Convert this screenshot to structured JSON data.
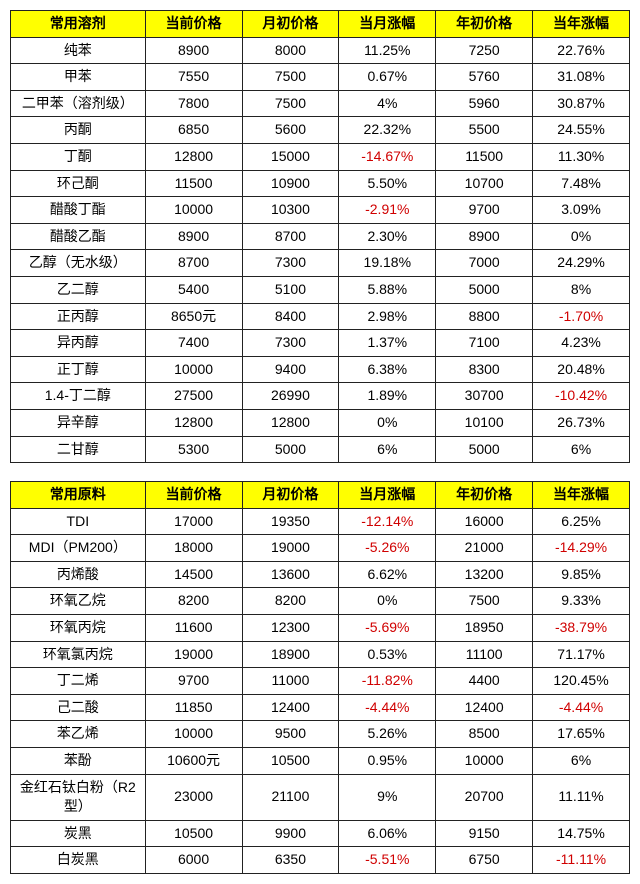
{
  "colors": {
    "header_bg": "#ffff00",
    "header_fg": "#000000",
    "border": "#222222",
    "cell_bg": "#ffffff",
    "cell_fg": "#000000",
    "negative_fg": "#d00000"
  },
  "font": {
    "family": "Microsoft YaHei",
    "size_pt": 14
  },
  "tables": [
    {
      "headers": [
        "常用溶剂",
        "当前价格",
        "月初价格",
        "当月涨幅",
        "年初价格",
        "当年涨幅"
      ],
      "rows": [
        {
          "name": "纯苯",
          "current": "8900",
          "month_start": "8000",
          "month_chg": "11.25%",
          "year_start": "7250",
          "year_chg": "22.76%"
        },
        {
          "name": "甲苯",
          "current": "7550",
          "month_start": "7500",
          "month_chg": "0.67%",
          "year_start": "5760",
          "year_chg": "31.08%"
        },
        {
          "name": "二甲苯（溶剂级）",
          "current": "7800",
          "month_start": "7500",
          "month_chg": "4%",
          "year_start": "5960",
          "year_chg": "30.87%"
        },
        {
          "name": "丙酮",
          "current": "6850",
          "month_start": "5600",
          "month_chg": "22.32%",
          "year_start": "5500",
          "year_chg": "24.55%"
        },
        {
          "name": "丁酮",
          "current": "12800",
          "month_start": "15000",
          "month_chg": "-14.67%",
          "year_start": "11500",
          "year_chg": "11.30%"
        },
        {
          "name": "环己酮",
          "current": "11500",
          "month_start": "10900",
          "month_chg": "5.50%",
          "year_start": "10700",
          "year_chg": "7.48%"
        },
        {
          "name": "醋酸丁酯",
          "current": "10000",
          "month_start": "10300",
          "month_chg": "-2.91%",
          "year_start": "9700",
          "year_chg": "3.09%"
        },
        {
          "name": "醋酸乙酯",
          "current": "8900",
          "month_start": "8700",
          "month_chg": "2.30%",
          "year_start": "8900",
          "year_chg": "0%"
        },
        {
          "name": "乙醇（无水级）",
          "current": "8700",
          "month_start": "7300",
          "month_chg": "19.18%",
          "year_start": "7000",
          "year_chg": "24.29%"
        },
        {
          "name": "乙二醇",
          "current": "5400",
          "month_start": "5100",
          "month_chg": "5.88%",
          "year_start": "5000",
          "year_chg": "8%"
        },
        {
          "name": "正丙醇",
          "current": "8650元",
          "month_start": "8400",
          "month_chg": "2.98%",
          "year_start": "8800",
          "year_chg": "-1.70%"
        },
        {
          "name": "异丙醇",
          "current": "7400",
          "month_start": "7300",
          "month_chg": "1.37%",
          "year_start": "7100",
          "year_chg": "4.23%"
        },
        {
          "name": "正丁醇",
          "current": "10000",
          "month_start": "9400",
          "month_chg": "6.38%",
          "year_start": "8300",
          "year_chg": "20.48%"
        },
        {
          "name": "1.4-丁二醇",
          "current": "27500",
          "month_start": "26990",
          "month_chg": "1.89%",
          "year_start": "30700",
          "year_chg": "-10.42%"
        },
        {
          "name": "异辛醇",
          "current": "12800",
          "month_start": "12800",
          "month_chg": "0%",
          "year_start": "10100",
          "year_chg": "26.73%"
        },
        {
          "name": "二甘醇",
          "current": "5300",
          "month_start": "5000",
          "month_chg": "6%",
          "year_start": "5000",
          "year_chg": "6%"
        }
      ]
    },
    {
      "headers": [
        "常用原料",
        "当前价格",
        "月初价格",
        "当月涨幅",
        "年初价格",
        "当年涨幅"
      ],
      "rows": [
        {
          "name": "TDI",
          "current": "17000",
          "month_start": "19350",
          "month_chg": "-12.14%",
          "year_start": "16000",
          "year_chg": "6.25%"
        },
        {
          "name": "MDI（PM200）",
          "current": "18000",
          "month_start": "19000",
          "month_chg": "-5.26%",
          "year_start": "21000",
          "year_chg": "-14.29%"
        },
        {
          "name": "丙烯酸",
          "current": "14500",
          "month_start": "13600",
          "month_chg": "6.62%",
          "year_start": "13200",
          "year_chg": "9.85%"
        },
        {
          "name": "环氧乙烷",
          "current": "8200",
          "month_start": "8200",
          "month_chg": "0%",
          "year_start": "7500",
          "year_chg": "9.33%"
        },
        {
          "name": "环氧丙烷",
          "current": "11600",
          "month_start": "12300",
          "month_chg": "-5.69%",
          "year_start": "18950",
          "year_chg": "-38.79%"
        },
        {
          "name": "环氧氯丙烷",
          "current": "19000",
          "month_start": "18900",
          "month_chg": "0.53%",
          "year_start": "11100",
          "year_chg": "71.17%"
        },
        {
          "name": "丁二烯",
          "current": "9700",
          "month_start": "11000",
          "month_chg": "-11.82%",
          "year_start": "4400",
          "year_chg": "120.45%"
        },
        {
          "name": "己二酸",
          "current": "11850",
          "month_start": "12400",
          "month_chg": "-4.44%",
          "year_start": "12400",
          "year_chg": "-4.44%"
        },
        {
          "name": "苯乙烯",
          "current": "10000",
          "month_start": "9500",
          "month_chg": "5.26%",
          "year_start": "8500",
          "year_chg": "17.65%"
        },
        {
          "name": "苯酚",
          "current": "10600元",
          "month_start": "10500",
          "month_chg": "0.95%",
          "year_start": "10000",
          "year_chg": "6%"
        },
        {
          "name": "金红石钛白粉（R2型）",
          "current": "23000",
          "month_start": "21100",
          "month_chg": "9%",
          "year_start": "20700",
          "year_chg": "11.11%"
        },
        {
          "name": "炭黑",
          "current": "10500",
          "month_start": "9900",
          "month_chg": "6.06%",
          "year_start": "9150",
          "year_chg": "14.75%"
        },
        {
          "name": "白炭黑",
          "current": "6000",
          "month_start": "6350",
          "month_chg": "-5.51%",
          "year_start": "6750",
          "year_chg": "-11.11%"
        }
      ]
    }
  ]
}
